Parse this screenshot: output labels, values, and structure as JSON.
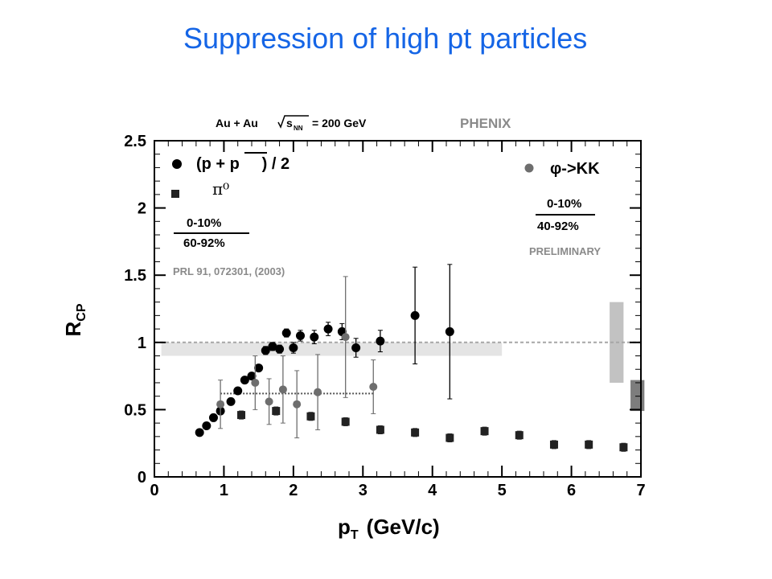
{
  "slide": {
    "title": "Suppression of high pt particles"
  },
  "chart_data": {
    "type": "scatter",
    "header": {
      "system": "Au + Au",
      "energy": "= 200 GeV",
      "experiment": "PHENIX"
    },
    "xlabel": "p",
    "xlabel_sub": "T",
    "xlabel_unit": "(GeV/c)",
    "ylabel": "R",
    "ylabel_sub": "CP",
    "xlim": [
      0,
      7
    ],
    "ylim": [
      0,
      2.5
    ],
    "x_ticks": [
      "0",
      "1",
      "2",
      "3",
      "4",
      "5",
      "6",
      "7"
    ],
    "y_ticks": [
      "0",
      "0.5",
      "1",
      "1.5",
      "2",
      "2.5"
    ],
    "annotations": {
      "proton_legend": "(p + p     ) / 2",
      "pion_legend": "π⁰",
      "ratio_left_top": "0-10%",
      "ratio_left_bottom": "60-92%",
      "reference": "PRL 91, 072301, (2003)",
      "phi_legend": "φ->KK",
      "ratio_right_top": "0-10%",
      "ratio_right_bottom": "40-92%",
      "preliminary": "PRELIMINARY"
    },
    "reference_line": 1.0,
    "series": [
      {
        "marker": "circle",
        "color": "#000000",
        "points": [
          {
            "x": 0.65,
            "y": 0.33,
            "err": 0.0
          },
          {
            "x": 0.75,
            "y": 0.38,
            "err": 0.0
          },
          {
            "x": 0.85,
            "y": 0.44,
            "err": 0.0
          },
          {
            "x": 0.95,
            "y": 0.49,
            "err": 0.0
          },
          {
            "x": 1.1,
            "y": 0.56,
            "err": 0.0
          },
          {
            "x": 1.2,
            "y": 0.64,
            "err": 0.0
          },
          {
            "x": 1.3,
            "y": 0.72,
            "err": 0.0
          },
          {
            "x": 1.4,
            "y": 0.75,
            "err": 0.0
          },
          {
            "x": 1.5,
            "y": 0.81,
            "err": 0.0
          },
          {
            "x": 1.6,
            "y": 0.94,
            "err": 0.03
          },
          {
            "x": 1.7,
            "y": 0.97,
            "err": 0.03
          },
          {
            "x": 1.8,
            "y": 0.95,
            "err": 0.03
          },
          {
            "x": 1.9,
            "y": 1.07,
            "err": 0.03
          },
          {
            "x": 2.0,
            "y": 0.96,
            "err": 0.04
          },
          {
            "x": 2.1,
            "y": 1.05,
            "err": 0.04
          },
          {
            "x": 2.3,
            "y": 1.04,
            "err": 0.05
          },
          {
            "x": 2.5,
            "y": 1.1,
            "err": 0.05
          },
          {
            "x": 2.7,
            "y": 1.08,
            "err": 0.06
          },
          {
            "x": 2.9,
            "y": 0.96,
            "err": 0.07
          },
          {
            "x": 3.25,
            "y": 1.01,
            "err": 0.08
          },
          {
            "x": 3.75,
            "y": 1.2,
            "err": 0.36
          },
          {
            "x": 4.25,
            "y": 1.08,
            "err": 0.5
          }
        ]
      },
      {
        "marker": "square",
        "color": "#222222",
        "points": [
          {
            "x": 1.25,
            "y": 0.46,
            "err": 0.03
          },
          {
            "x": 1.75,
            "y": 0.49,
            "err": 0.03
          },
          {
            "x": 2.25,
            "y": 0.45,
            "err": 0.03
          },
          {
            "x": 2.75,
            "y": 0.41,
            "err": 0.03
          },
          {
            "x": 3.25,
            "y": 0.35,
            "err": 0.03
          },
          {
            "x": 3.75,
            "y": 0.33,
            "err": 0.03
          },
          {
            "x": 4.25,
            "y": 0.29,
            "err": 0.03
          },
          {
            "x": 4.75,
            "y": 0.34,
            "err": 0.03
          },
          {
            "x": 5.25,
            "y": 0.31,
            "err": 0.03
          },
          {
            "x": 5.75,
            "y": 0.24,
            "err": 0.03
          },
          {
            "x": 6.25,
            "y": 0.24,
            "err": 0.03
          },
          {
            "x": 6.75,
            "y": 0.22,
            "err": 0.03
          }
        ]
      },
      {
        "marker": "circle",
        "color": "#6e6e6e",
        "points": [
          {
            "x": 0.95,
            "y": 0.54,
            "err": 0.18
          },
          {
            "x": 1.45,
            "y": 0.7,
            "err": 0.2
          },
          {
            "x": 1.65,
            "y": 0.56,
            "err": 0.17
          },
          {
            "x": 1.85,
            "y": 0.65,
            "err": 0.25
          },
          {
            "x": 2.05,
            "y": 0.54,
            "err": 0.25
          },
          {
            "x": 2.35,
            "y": 0.63,
            "err": 0.28
          },
          {
            "x": 2.75,
            "y": 1.04,
            "err": 0.45
          },
          {
            "x": 3.15,
            "y": 0.67,
            "err": 0.2
          }
        ]
      }
    ],
    "uncertainty_bands": [
      {
        "x_from": 0.1,
        "x_to": 5.0,
        "y_from": 0.9,
        "y_to": 1.0,
        "color": "#e4e4e4"
      },
      {
        "x_from": 6.55,
        "x_to": 6.75,
        "y_from": 0.7,
        "y_to": 1.3,
        "color": "#c2c2c2"
      },
      {
        "x_from": 6.85,
        "x_to": 7.05,
        "y_from": 0.49,
        "y_to": 0.72,
        "color": "#7d7d7d"
      }
    ],
    "dotted_segment": {
      "x_from": 0.95,
      "x_to": 3.15,
      "y": 0.62
    }
  }
}
